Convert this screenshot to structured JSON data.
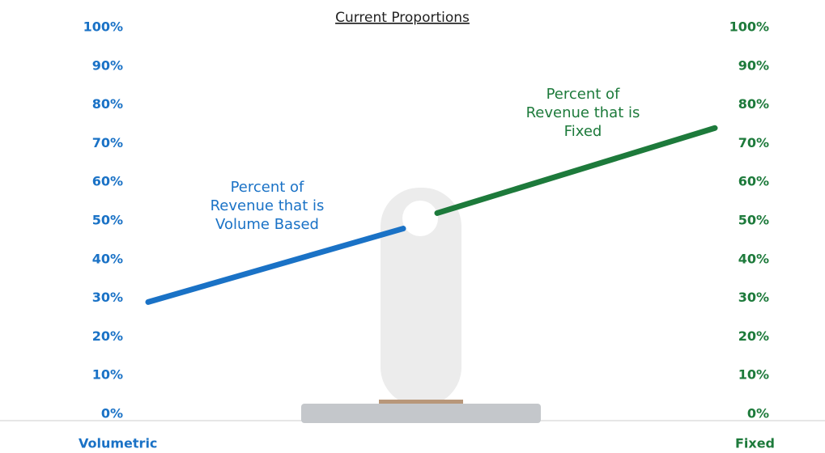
{
  "chart_data": {
    "type": "line",
    "title": "Current Proportions",
    "categories": [
      "Volumetric",
      null,
      "Fixed"
    ],
    "series": [
      {
        "name": "Percent of Revenue that is Volume Based",
        "color": "#1a72c6",
        "values": [
          29,
          48,
          null
        ]
      },
      {
        "name": "Percent of Revenue that is Fixed",
        "color": "#1d7a3b",
        "values": [
          null,
          52,
          74
        ],
        "axis": "y2"
      }
    ],
    "ylim": [
      0,
      100
    ],
    "yticks": [
      {
        "value": 0,
        "label": "0%"
      },
      {
        "value": 10,
        "label": "10%"
      },
      {
        "value": 20,
        "label": "20%"
      },
      {
        "value": 30,
        "label": "30%"
      },
      {
        "value": 40,
        "label": "40%"
      },
      {
        "value": 50,
        "label": "50%"
      },
      {
        "value": 60,
        "label": "60%"
      },
      {
        "value": 70,
        "label": "70%"
      },
      {
        "value": 80,
        "label": "80%"
      },
      {
        "value": 90,
        "label": "90%"
      },
      {
        "value": 100,
        "label": "100%"
      }
    ],
    "y2lim": [
      0,
      100
    ],
    "y2ticks": [
      {
        "value": 0,
        "label": "0%"
      },
      {
        "value": 10,
        "label": "10%"
      },
      {
        "value": 20,
        "label": "20%"
      },
      {
        "value": 30,
        "label": "30%"
      },
      {
        "value": 40,
        "label": "40%"
      },
      {
        "value": 50,
        "label": "50%"
      },
      {
        "value": 60,
        "label": "60%"
      },
      {
        "value": 70,
        "label": "70%"
      },
      {
        "value": 80,
        "label": "80%"
      },
      {
        "value": 90,
        "label": "90%"
      },
      {
        "value": 100,
        "label": "100%"
      }
    ],
    "grid": false
  }
}
